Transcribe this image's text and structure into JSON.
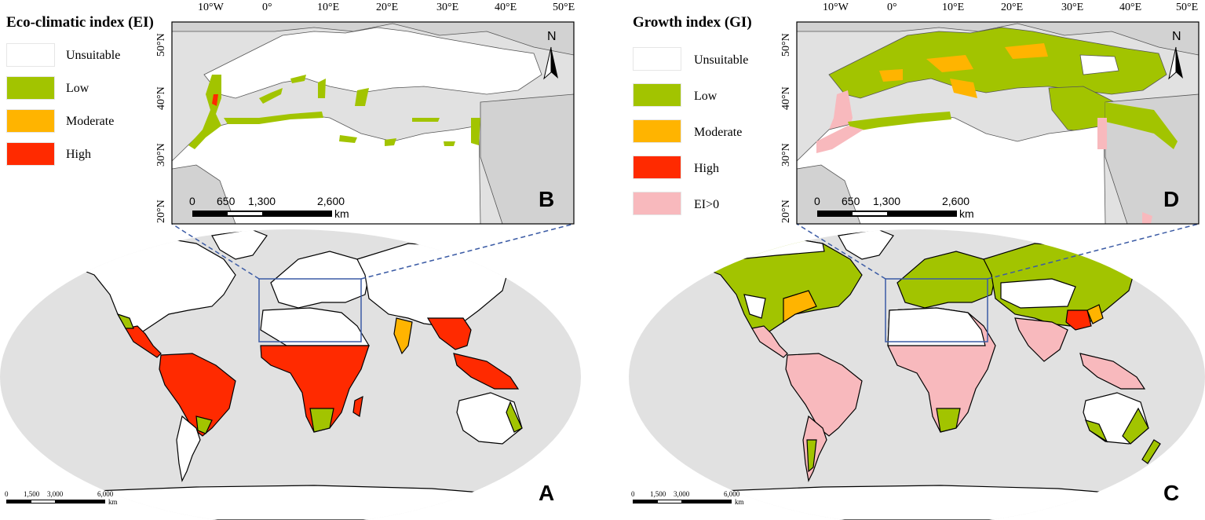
{
  "colors": {
    "unsuitable": "#ffffff",
    "low": "#a2c400",
    "moderate": "#ffb400",
    "high": "#ff2a00",
    "ei_pos": "#f8b9bd",
    "ocean": "#e1e1e1",
    "land_other": "#d2d2d2",
    "box": "#3b5ba5"
  },
  "left": {
    "legend_title": "Eco-climatic index (EI)",
    "legend": [
      "Unsuitable",
      "Low",
      "Moderate",
      "High"
    ],
    "inset_label": "B",
    "world_label": "A"
  },
  "right": {
    "legend_title": "Growth index (GI)",
    "legend": [
      "Unsuitable",
      "Low",
      "Moderate",
      "High",
      "EI>0"
    ],
    "inset_label": "D",
    "world_label": "C"
  },
  "inset": {
    "lon_ticks": [
      "10°W",
      "0°",
      "10°E",
      "20°E",
      "30°E",
      "40°E",
      "50°E"
    ],
    "lat_ticks": [
      "50°N",
      "40°N",
      "30°N",
      "20°N"
    ],
    "north": "N",
    "scale_ticks": [
      "0",
      "650",
      "1,300",
      "2,600"
    ],
    "scale_unit": "km"
  },
  "world": {
    "scale_ticks": [
      "0",
      "1,500",
      "3,000",
      "6,000"
    ],
    "scale_unit": "km"
  }
}
